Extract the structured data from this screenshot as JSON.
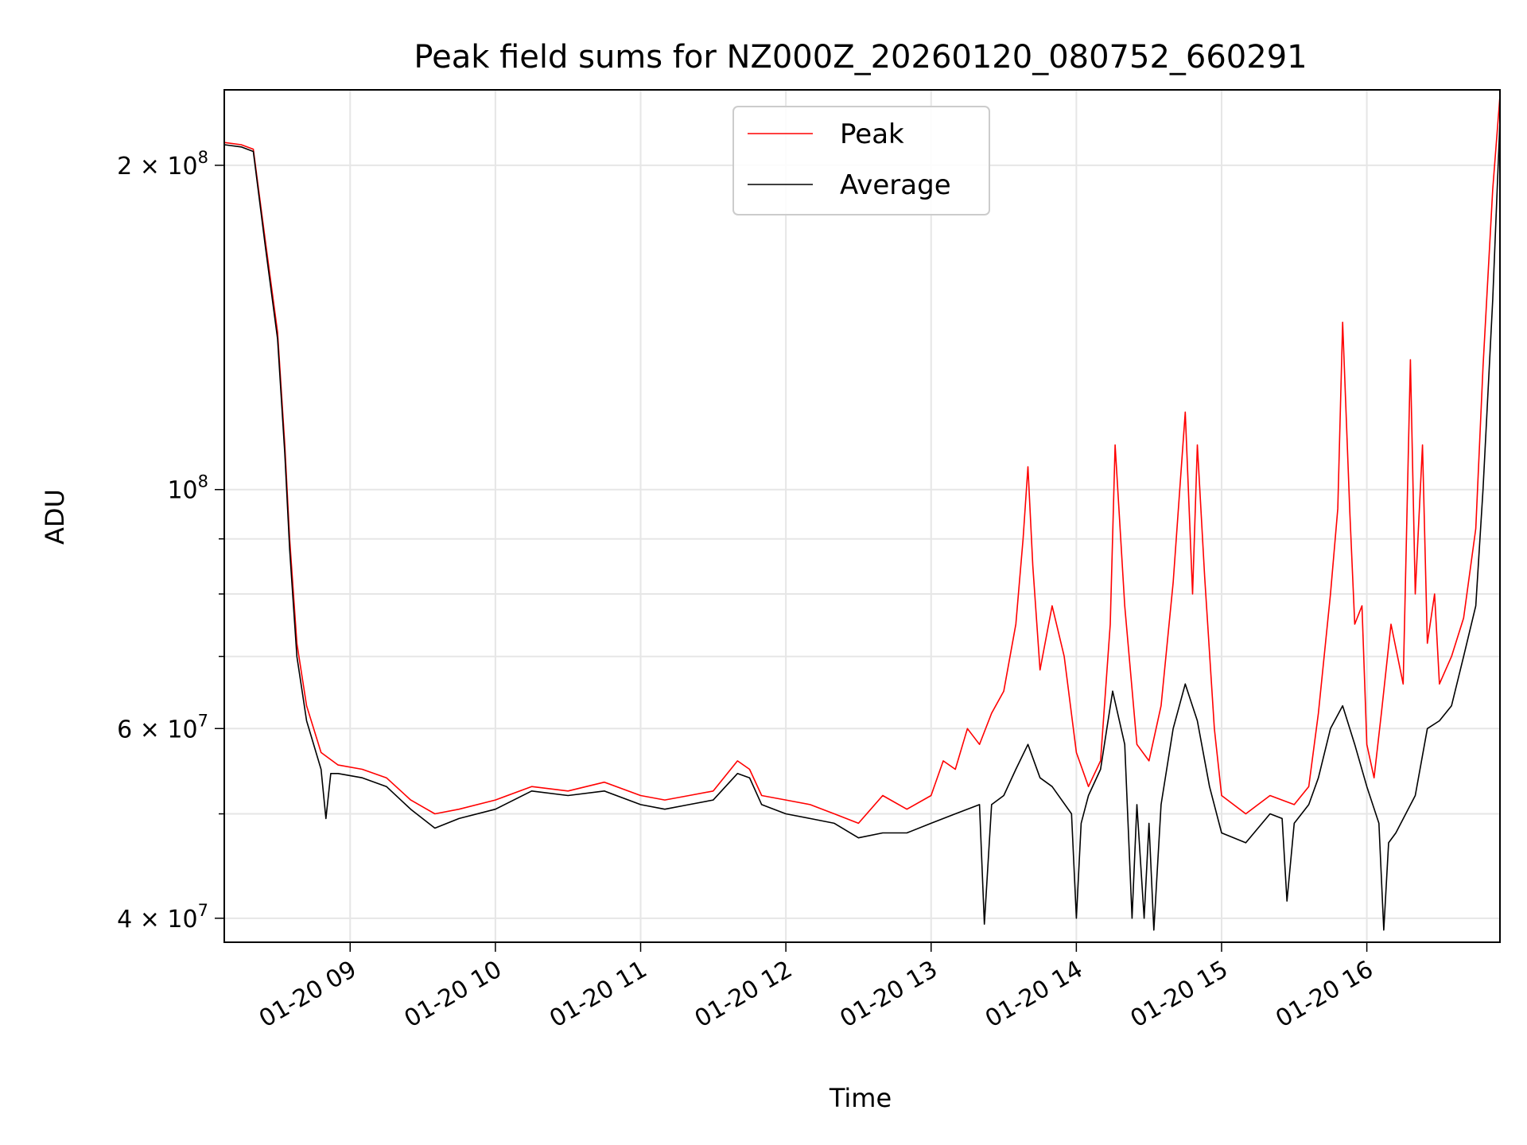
{
  "chart_data": {
    "type": "line",
    "title": "Peak field sums for NZ000Z_20260120_080752_660291",
    "xlabel": "Time",
    "ylabel": "ADU",
    "y_scale": "log",
    "ylim": [
      38000000,
      235000000
    ],
    "xlim": [
      "2026-01-20T08:08",
      "2026-01-20T16:55"
    ],
    "grid": true,
    "legend_placement": "top-center",
    "x_ticks": [
      {
        "t": "2026-01-20T09:00",
        "label": "01-20 09"
      },
      {
        "t": "2026-01-20T10:00",
        "label": "01-20 10"
      },
      {
        "t": "2026-01-20T11:00",
        "label": "01-20 11"
      },
      {
        "t": "2026-01-20T12:00",
        "label": "01-20 12"
      },
      {
        "t": "2026-01-20T13:00",
        "label": "01-20 13"
      },
      {
        "t": "2026-01-20T14:00",
        "label": "01-20 14"
      },
      {
        "t": "2026-01-20T15:00",
        "label": "01-20 15"
      },
      {
        "t": "2026-01-20T16:00",
        "label": "01-20 16"
      }
    ],
    "y_ticks": [
      {
        "value": 40000000,
        "base": "4",
        "exp": "7"
      },
      {
        "value": 60000000,
        "base": "6",
        "exp": "7"
      },
      {
        "value": 100000000,
        "base": "",
        "exp": "8"
      },
      {
        "value": 200000000,
        "base": "2",
        "exp": "8"
      }
    ],
    "y_minor_ticks": [
      50000000,
      70000000,
      80000000,
      90000000
    ],
    "series": [
      {
        "name": "Peak",
        "color": "#ff0000",
        "x": [
          "2026-01-20T08:08",
          "2026-01-20T08:15",
          "2026-01-20T08:20",
          "2026-01-20T08:25",
          "2026-01-20T08:30",
          "2026-01-20T08:33",
          "2026-01-20T08:35",
          "2026-01-20T08:38",
          "2026-01-20T08:42",
          "2026-01-20T08:48",
          "2026-01-20T08:55",
          "2026-01-20T09:05",
          "2026-01-20T09:15",
          "2026-01-20T09:25",
          "2026-01-20T09:35",
          "2026-01-20T09:45",
          "2026-01-20T10:00",
          "2026-01-20T10:15",
          "2026-01-20T10:30",
          "2026-01-20T10:45",
          "2026-01-20T11:00",
          "2026-01-20T11:10",
          "2026-01-20T11:20",
          "2026-01-20T11:30",
          "2026-01-20T11:40",
          "2026-01-20T11:45",
          "2026-01-20T11:50",
          "2026-01-20T12:00",
          "2026-01-20T12:10",
          "2026-01-20T12:20",
          "2026-01-20T12:30",
          "2026-01-20T12:40",
          "2026-01-20T12:50",
          "2026-01-20T13:00",
          "2026-01-20T13:05",
          "2026-01-20T13:10",
          "2026-01-20T13:15",
          "2026-01-20T13:20",
          "2026-01-20T13:25",
          "2026-01-20T13:30",
          "2026-01-20T13:35",
          "2026-01-20T13:38",
          "2026-01-20T13:40",
          "2026-01-20T13:42",
          "2026-01-20T13:45",
          "2026-01-20T13:50",
          "2026-01-20T13:55",
          "2026-01-20T14:00",
          "2026-01-20T14:05",
          "2026-01-20T14:10",
          "2026-01-20T14:14",
          "2026-01-20T14:16",
          "2026-01-20T14:20",
          "2026-01-20T14:25",
          "2026-01-20T14:30",
          "2026-01-20T14:35",
          "2026-01-20T14:40",
          "2026-01-20T14:45",
          "2026-01-20T14:48",
          "2026-01-20T14:50",
          "2026-01-20T14:53",
          "2026-01-20T14:57",
          "2026-01-20T15:00",
          "2026-01-20T15:10",
          "2026-01-20T15:20",
          "2026-01-20T15:30",
          "2026-01-20T15:36",
          "2026-01-20T15:40",
          "2026-01-20T15:45",
          "2026-01-20T15:48",
          "2026-01-20T15:50",
          "2026-01-20T15:53",
          "2026-01-20T15:55",
          "2026-01-20T15:58",
          "2026-01-20T16:00",
          "2026-01-20T16:03",
          "2026-01-20T16:06",
          "2026-01-20T16:10",
          "2026-01-20T16:15",
          "2026-01-20T16:18",
          "2026-01-20T16:20",
          "2026-01-20T16:23",
          "2026-01-20T16:25",
          "2026-01-20T16:28",
          "2026-01-20T16:30",
          "2026-01-20T16:35",
          "2026-01-20T16:40",
          "2026-01-20T16:45",
          "2026-01-20T16:48",
          "2026-01-20T16:52",
          "2026-01-20T16:55"
        ],
        "values": [
          210000000,
          209000000,
          207000000,
          170000000,
          140000000,
          110000000,
          90000000,
          72000000,
          63000000,
          57000000,
          55500000,
          55000000,
          54000000,
          51500000,
          50000000,
          50500000,
          51500000,
          53000000,
          52500000,
          53500000,
          52000000,
          51500000,
          52000000,
          52500000,
          56000000,
          55000000,
          52000000,
          51500000,
          51000000,
          50000000,
          49000000,
          52000000,
          50500000,
          52000000,
          56000000,
          55000000,
          60000000,
          58000000,
          62000000,
          65000000,
          75000000,
          90000000,
          105000000,
          85000000,
          68000000,
          78000000,
          70000000,
          57000000,
          53000000,
          56000000,
          75000000,
          110000000,
          78000000,
          58000000,
          56000000,
          63000000,
          82000000,
          118000000,
          80000000,
          110000000,
          83000000,
          60000000,
          52000000,
          50000000,
          52000000,
          51000000,
          53000000,
          62000000,
          80000000,
          96000000,
          143000000,
          95000000,
          75000000,
          78000000,
          58000000,
          54000000,
          62000000,
          75000000,
          66000000,
          132000000,
          80000000,
          110000000,
          72000000,
          80000000,
          66000000,
          70000000,
          76000000,
          92000000,
          130000000,
          190000000,
          232000000
        ]
      },
      {
        "name": "Average",
        "color": "#000000",
        "x": [
          "2026-01-20T08:08",
          "2026-01-20T08:15",
          "2026-01-20T08:20",
          "2026-01-20T08:25",
          "2026-01-20T08:30",
          "2026-01-20T08:33",
          "2026-01-20T08:35",
          "2026-01-20T08:38",
          "2026-01-20T08:42",
          "2026-01-20T08:48",
          "2026-01-20T08:50",
          "2026-01-20T08:52",
          "2026-01-20T08:55",
          "2026-01-20T09:05",
          "2026-01-20T09:15",
          "2026-01-20T09:25",
          "2026-01-20T09:35",
          "2026-01-20T09:45",
          "2026-01-20T10:00",
          "2026-01-20T10:15",
          "2026-01-20T10:30",
          "2026-01-20T10:45",
          "2026-01-20T11:00",
          "2026-01-20T11:10",
          "2026-01-20T11:20",
          "2026-01-20T11:30",
          "2026-01-20T11:40",
          "2026-01-20T11:45",
          "2026-01-20T11:50",
          "2026-01-20T12:00",
          "2026-01-20T12:10",
          "2026-01-20T12:20",
          "2026-01-20T12:30",
          "2026-01-20T12:40",
          "2026-01-20T12:50",
          "2026-01-20T13:00",
          "2026-01-20T13:10",
          "2026-01-20T13:20",
          "2026-01-20T13:22",
          "2026-01-20T13:25",
          "2026-01-20T13:30",
          "2026-01-20T13:35",
          "2026-01-20T13:40",
          "2026-01-20T13:45",
          "2026-01-20T13:50",
          "2026-01-20T13:58",
          "2026-01-20T14:00",
          "2026-01-20T14:02",
          "2026-01-20T14:05",
          "2026-01-20T14:10",
          "2026-01-20T14:15",
          "2026-01-20T14:20",
          "2026-01-20T14:23",
          "2026-01-20T14:25",
          "2026-01-20T14:28",
          "2026-01-20T14:30",
          "2026-01-20T14:32",
          "2026-01-20T14:35",
          "2026-01-20T14:40",
          "2026-01-20T14:45",
          "2026-01-20T14:50",
          "2026-01-20T14:55",
          "2026-01-20T15:00",
          "2026-01-20T15:10",
          "2026-01-20T15:20",
          "2026-01-20T15:25",
          "2026-01-20T15:27",
          "2026-01-20T15:30",
          "2026-01-20T15:36",
          "2026-01-20T15:40",
          "2026-01-20T15:45",
          "2026-01-20T15:50",
          "2026-01-20T15:55",
          "2026-01-20T16:00",
          "2026-01-20T16:05",
          "2026-01-20T16:07",
          "2026-01-20T16:09",
          "2026-01-20T16:12",
          "2026-01-20T16:20",
          "2026-01-20T16:25",
          "2026-01-20T16:30",
          "2026-01-20T16:35",
          "2026-01-20T16:40",
          "2026-01-20T16:45",
          "2026-01-20T16:48",
          "2026-01-20T16:52",
          "2026-01-20T16:55"
        ],
        "values": [
          209000000,
          208000000,
          206000000,
          168000000,
          138000000,
          108000000,
          88000000,
          70000000,
          61000000,
          55000000,
          49500000,
          54500000,
          54500000,
          54000000,
          53000000,
          50500000,
          48500000,
          49500000,
          50500000,
          52500000,
          52000000,
          52500000,
          51000000,
          50500000,
          51000000,
          51500000,
          54500000,
          54000000,
          51000000,
          50000000,
          49500000,
          49000000,
          47500000,
          48000000,
          48000000,
          49000000,
          50000000,
          51000000,
          39500000,
          51000000,
          52000000,
          55000000,
          58000000,
          54000000,
          53000000,
          50000000,
          40000000,
          49000000,
          52000000,
          55000000,
          65000000,
          58000000,
          40000000,
          51000000,
          40000000,
          49000000,
          39000000,
          51000000,
          60000000,
          66000000,
          61000000,
          53000000,
          48000000,
          47000000,
          50000000,
          49500000,
          41500000,
          49000000,
          51000000,
          54000000,
          60000000,
          63000000,
          58000000,
          53000000,
          49000000,
          39000000,
          47000000,
          48000000,
          52000000,
          60000000,
          61000000,
          63000000,
          70000000,
          78000000,
          100000000,
          150000000,
          220000000
        ]
      }
    ]
  }
}
